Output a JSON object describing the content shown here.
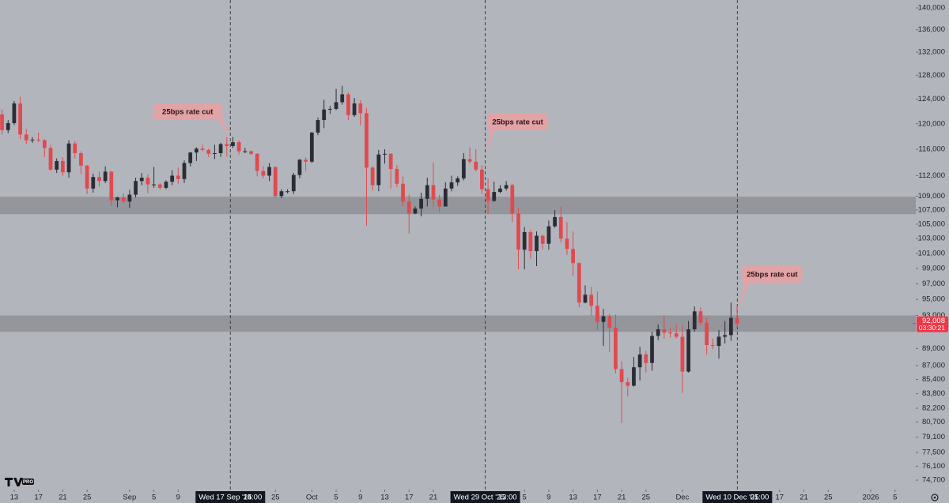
{
  "chart_data": {
    "type": "candlestick",
    "log_scale": true,
    "up_color": "#2a2d35",
    "down_color": "#e04a4f",
    "background": "#b3b5bd",
    "zone_color": "#8e9096",
    "x": [
      "2025-08-11",
      "2025-08-12",
      "2025-08-13",
      "2025-08-14",
      "2025-08-15",
      "2025-08-16",
      "2025-08-17",
      "2025-08-18",
      "2025-08-19",
      "2025-08-20",
      "2025-08-21",
      "2025-08-22",
      "2025-08-23",
      "2025-08-24",
      "2025-08-25",
      "2025-08-26",
      "2025-08-27",
      "2025-08-28",
      "2025-08-29",
      "2025-08-30",
      "2025-08-31",
      "2025-09-01",
      "2025-09-02",
      "2025-09-03",
      "2025-09-04",
      "2025-09-05",
      "2025-09-06",
      "2025-09-07",
      "2025-09-08",
      "2025-09-09",
      "2025-09-10",
      "2025-09-11",
      "2025-09-12",
      "2025-09-13",
      "2025-09-14",
      "2025-09-15",
      "2025-09-16",
      "2025-09-17",
      "2025-09-18",
      "2025-09-19",
      "2025-09-20",
      "2025-09-21",
      "2025-09-22",
      "2025-09-23",
      "2025-09-24",
      "2025-09-25",
      "2025-09-26",
      "2025-09-27",
      "2025-09-28",
      "2025-09-29",
      "2025-09-30",
      "2025-10-01",
      "2025-10-02",
      "2025-10-03",
      "2025-10-04",
      "2025-10-05",
      "2025-10-06",
      "2025-10-07",
      "2025-10-08",
      "2025-10-09",
      "2025-10-10",
      "2025-10-11",
      "2025-10-12",
      "2025-10-13",
      "2025-10-14",
      "2025-10-15",
      "2025-10-16",
      "2025-10-17",
      "2025-10-18",
      "2025-10-19",
      "2025-10-20",
      "2025-10-21",
      "2025-10-22",
      "2025-10-23",
      "2025-10-24",
      "2025-10-25",
      "2025-10-26",
      "2025-10-27",
      "2025-10-28",
      "2025-10-29",
      "2025-10-30",
      "2025-10-31",
      "2025-11-01",
      "2025-11-02",
      "2025-11-03",
      "2025-11-04",
      "2025-11-05",
      "2025-11-06",
      "2025-11-07",
      "2025-11-08",
      "2025-11-09",
      "2025-11-10",
      "2025-11-11",
      "2025-11-12",
      "2025-11-13",
      "2025-11-14",
      "2025-11-15",
      "2025-11-16",
      "2025-11-17",
      "2025-11-18",
      "2025-11-19",
      "2025-11-20",
      "2025-11-21",
      "2025-11-22",
      "2025-11-23",
      "2025-11-24",
      "2025-11-25",
      "2025-11-26",
      "2025-11-27",
      "2025-11-28",
      "2025-11-29",
      "2025-11-30",
      "2025-12-01",
      "2025-12-02",
      "2025-12-03",
      "2025-12-04",
      "2025-12-05",
      "2025-12-06",
      "2025-12-07",
      "2025-12-08",
      "2025-12-09",
      "2025-12-10"
    ],
    "open": [
      121500,
      119000,
      120100,
      123300,
      118300,
      117400,
      117500,
      117400,
      116200,
      112900,
      114200,
      112500,
      116900,
      115400,
      113500,
      110100,
      111800,
      111200,
      112600,
      108400,
      108800,
      108200,
      109200,
      111200,
      111700,
      110700,
      110700,
      110200,
      111100,
      112000,
      111500,
      113900,
      115500,
      116100,
      115900,
      115300,
      115400,
      116800,
      116500,
      117100,
      115700,
      115700,
      115300,
      112700,
      112000,
      113300,
      109000,
      109700,
      109700,
      112100,
      114400,
      114100,
      118600,
      120600,
      122300,
      122400,
      123500,
      124800,
      121400,
      123300,
      121700,
      113200,
      110600,
      115200,
      115300,
      113000,
      110800,
      108200,
      106500,
      107200,
      108600,
      110600,
      108500,
      107500,
      110100,
      111000,
      111600,
      114500,
      114100,
      112900,
      110000,
      108300,
      109600,
      110100,
      110600,
      106500,
      101500,
      103900,
      101300,
      103400,
      102300,
      104700,
      106000,
      103000,
      101600,
      99700,
      94600,
      95600,
      94200,
      92200,
      92900,
      91500,
      86600,
      85100,
      84700,
      86800,
      88300,
      87300,
      90500,
      91300,
      90900,
      90800,
      90400,
      86300,
      91300,
      93500,
      92100,
      89400,
      89300,
      90400,
      90600,
      92700
    ],
    "high": [
      122300,
      120600,
      123700,
      124400,
      119200,
      117900,
      118600,
      117600,
      116700,
      114600,
      114800,
      117400,
      117300,
      115700,
      113600,
      112300,
      112600,
      113400,
      112700,
      108900,
      109400,
      109900,
      111700,
      112400,
      112200,
      113300,
      110900,
      111300,
      112800,
      113200,
      114300,
      115600,
      116300,
      116700,
      116100,
      116700,
      117000,
      117900,
      117900,
      117400,
      116200,
      115800,
      115400,
      113400,
      113900,
      113400,
      110000,
      110000,
      112400,
      114500,
      114800,
      118700,
      121000,
      123900,
      122900,
      125700,
      126200,
      125100,
      124200,
      123800,
      122500,
      113400,
      115900,
      116000,
      115400,
      113600,
      111900,
      109200,
      107500,
      109500,
      111700,
      114000,
      109200,
      111000,
      112000,
      111900,
      115400,
      116300,
      116000,
      113600,
      111600,
      111100,
      110600,
      111200,
      110800,
      107300,
      104600,
      104200,
      104000,
      103500,
      105500,
      107000,
      107500,
      105300,
      104000,
      99800,
      96800,
      96600,
      96000,
      93800,
      93200,
      93100,
      87500,
      85600,
      88000,
      89200,
      88700,
      91000,
      91900,
      93000,
      91500,
      91900,
      91800,
      92300,
      94100,
      94000,
      92700,
      90200,
      91200,
      92300,
      94600,
      94300
    ],
    "low": [
      118300,
      118500,
      119800,
      117600,
      116800,
      117000,
      117100,
      114800,
      112700,
      112400,
      112000,
      111700,
      114600,
      112200,
      109300,
      109500,
      110400,
      110900,
      107600,
      107400,
      108000,
      107300,
      108800,
      110600,
      109400,
      110200,
      109900,
      110000,
      110600,
      110800,
      110900,
      113400,
      114200,
      115700,
      114800,
      114500,
      114800,
      114900,
      116200,
      115200,
      115400,
      115100,
      111900,
      111600,
      111200,
      108700,
      108700,
      109400,
      109300,
      111600,
      112700,
      113900,
      118200,
      119300,
      121600,
      122200,
      123100,
      120600,
      121100,
      119700,
      104800,
      109800,
      109700,
      113800,
      110100,
      110300,
      107500,
      103700,
      106400,
      106100,
      107500,
      107500,
      106700,
      107500,
      109700,
      110500,
      111300,
      113800,
      112600,
      109300,
      106400,
      108200,
      109400,
      109800,
      105300,
      98900,
      98900,
      100300,
      99300,
      101500,
      101500,
      104500,
      102500,
      100800,
      98000,
      94000,
      94500,
      93000,
      91200,
      89300,
      88600,
      86100,
      80600,
      83500,
      84600,
      85300,
      86200,
      86400,
      90000,
      90200,
      90300,
      90200,
      83900,
      86200,
      91000,
      91800,
      88300,
      88900,
      87800,
      89600,
      89900,
      91500
    ],
    "close": [
      119000,
      120100,
      123300,
      118300,
      117400,
      117500,
      117400,
      116200,
      112900,
      114200,
      112500,
      116900,
      115400,
      113500,
      110100,
      111800,
      111200,
      112600,
      108400,
      108800,
      108200,
      109200,
      111200,
      111700,
      110700,
      110700,
      110200,
      111100,
      112000,
      111500,
      113900,
      115500,
      116100,
      115900,
      115300,
      115400,
      116800,
      116500,
      117100,
      115700,
      115700,
      115300,
      112700,
      112000,
      113300,
      109000,
      109700,
      109700,
      112100,
      114400,
      114100,
      118600,
      120600,
      122300,
      122400,
      123500,
      124800,
      121400,
      123300,
      121700,
      113200,
      110600,
      115200,
      115300,
      113000,
      110800,
      108200,
      106500,
      107200,
      108600,
      110600,
      108500,
      107500,
      110100,
      111000,
      111600,
      114500,
      114100,
      112900,
      110000,
      108300,
      109600,
      110100,
      110600,
      106500,
      101500,
      103900,
      101300,
      103400,
      102300,
      104700,
      106000,
      103000,
      101600,
      99700,
      94600,
      95600,
      94200,
      92200,
      92900,
      91500,
      86600,
      85100,
      84700,
      86800,
      88300,
      87300,
      90500,
      91300,
      90900,
      90800,
      90400,
      86300,
      91300,
      93500,
      92100,
      89400,
      89300,
      90400,
      90600,
      92700,
      92008
    ],
    "xlim": [
      "2025-08-10T16:00",
      "2026-01-08T10:00"
    ],
    "ylim": [
      73770,
      141480
    ],
    "xticks": [
      {
        "value": "2025-08-13",
        "label": "13"
      },
      {
        "value": "2025-08-17",
        "label": "17"
      },
      {
        "value": "2025-08-21",
        "label": "21"
      },
      {
        "value": "2025-08-25",
        "label": "25"
      },
      {
        "value": "2025-09-01",
        "label": "Sep"
      },
      {
        "value": "2025-09-05",
        "label": "5"
      },
      {
        "value": "2025-09-09",
        "label": "9"
      },
      {
        "value": "2025-09-25",
        "label": "25"
      },
      {
        "value": "2025-10-01",
        "label": "Oct"
      },
      {
        "value": "2025-10-05",
        "label": "5"
      },
      {
        "value": "2025-10-09",
        "label": "9"
      },
      {
        "value": "2025-10-13",
        "label": "13"
      },
      {
        "value": "2025-10-17",
        "label": "17"
      },
      {
        "value": "2025-10-21",
        "label": "21"
      },
      {
        "value": "2025-11-05",
        "label": "5"
      },
      {
        "value": "2025-11-09",
        "label": "9"
      },
      {
        "value": "2025-11-13",
        "label": "13"
      },
      {
        "value": "2025-11-17",
        "label": "17"
      },
      {
        "value": "2025-11-21",
        "label": "21"
      },
      {
        "value": "2025-11-25",
        "label": "25"
      },
      {
        "value": "2025-12-01",
        "label": "Dec"
      },
      {
        "value": "2025-12-17",
        "label": "17"
      },
      {
        "value": "2025-12-21",
        "label": "21"
      },
      {
        "value": "2025-12-25",
        "label": "25"
      },
      {
        "value": "2026-01-01",
        "label": "2026"
      },
      {
        "value": "2026-01-05",
        "label": "5"
      }
    ],
    "yticks": [
      {
        "value": 140000,
        "label": "140,000"
      },
      {
        "value": 136000,
        "label": "136,000"
      },
      {
        "value": 132000,
        "label": "132,000"
      },
      {
        "value": 128000,
        "label": "128,000"
      },
      {
        "value": 124000,
        "label": "124,000"
      },
      {
        "value": 120000,
        "label": "120,000"
      },
      {
        "value": 116000,
        "label": "116,000"
      },
      {
        "value": 112000,
        "label": "112,000"
      },
      {
        "value": 109000,
        "label": "109,000"
      },
      {
        "value": 107000,
        "label": "107,000"
      },
      {
        "value": 105000,
        "label": "105,000"
      },
      {
        "value": 103000,
        "label": "103,000"
      },
      {
        "value": 101000,
        "label": "101,000"
      },
      {
        "value": 99000,
        "label": "99,000"
      },
      {
        "value": 97000,
        "label": "97,000"
      },
      {
        "value": 95000,
        "label": "95,000"
      },
      {
        "value": 93000,
        "label": "93,000"
      },
      {
        "value": 89000,
        "label": "89,000"
      },
      {
        "value": 87000,
        "label": "87,000"
      },
      {
        "value": 85400,
        "label": "85,400"
      },
      {
        "value": 83800,
        "label": "83,800"
      },
      {
        "value": 82200,
        "label": "82,200"
      },
      {
        "value": 80700,
        "label": "80,700"
      },
      {
        "value": 79100,
        "label": "79,100"
      },
      {
        "value": 77500,
        "label": "77,500"
      },
      {
        "value": 76100,
        "label": "76,100"
      },
      {
        "value": 74700,
        "label": "74,700"
      }
    ],
    "zones": [
      {
        "from": 106400,
        "to": 108900
      },
      {
        "from": 91000,
        "to": 93000
      }
    ],
    "markers": [
      {
        "x": "2025-09-17T14:00",
        "date_label": "Wed 17 Sep '25",
        "time_label": "14:00",
        "annotation": "25bps rate cut"
      },
      {
        "x": "2025-10-29T13:00",
        "date_label": "Wed 29 Oct '25",
        "time_label": "13:00",
        "annotation": "25bps rate cut"
      },
      {
        "x": "2025-12-10T01:00",
        "date_label": "Wed 10 Dec '25",
        "time_label": "01:00",
        "annotation": "25bps rate cut"
      }
    ],
    "last_price": {
      "value": 92008,
      "label": "92,008",
      "countdown": "03:30:21",
      "color": "#f23645"
    },
    "logo_badge": "PRO"
  }
}
